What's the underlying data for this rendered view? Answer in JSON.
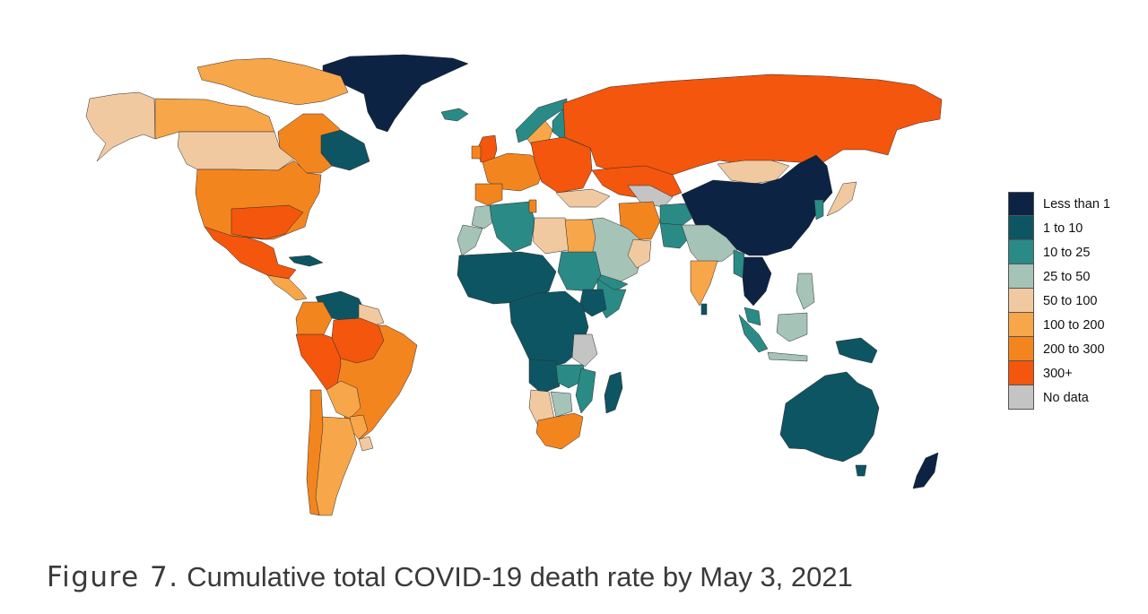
{
  "caption": {
    "figure_label": "Figure 7.",
    "text": "Cumulative total COVID-19 death rate by May 3, 2021"
  },
  "legend": {
    "items": [
      {
        "label": "Less than 1",
        "color": "#0c2344"
      },
      {
        "label": "1 to 10",
        "color": "#0e5563"
      },
      {
        "label": "10 to 25",
        "color": "#2a8a86"
      },
      {
        "label": "25 to 50",
        "color": "#a6c3b8"
      },
      {
        "label": "50 to 100",
        "color": "#f1c9a0"
      },
      {
        "label": "100 to 200",
        "color": "#f7a649"
      },
      {
        "label": "200 to 300",
        "color": "#f3851f"
      },
      {
        "label": "300+",
        "color": "#f3560c"
      },
      {
        "label": "No data",
        "color": "#c4c4c4"
      }
    ]
  },
  "regions": [
    {
      "id": "greenland",
      "name": "Greenland",
      "class": "Less than 1"
    },
    {
      "id": "alaska",
      "name": "Alaska",
      "class": "50 to 100"
    },
    {
      "id": "canada-west",
      "name": "Canada (west)",
      "class": "100 to 200"
    },
    {
      "id": "canada-arctic",
      "name": "Canadian Arctic",
      "class": "100 to 200"
    },
    {
      "id": "canada-prairies",
      "name": "Canada (prairies)",
      "class": "50 to 100"
    },
    {
      "id": "quebec",
      "name": "Quebec",
      "class": "200 to 300"
    },
    {
      "id": "atlantic-canada",
      "name": "Atlantic Canada",
      "class": "1 to 10"
    },
    {
      "id": "usa",
      "name": "United States",
      "class": "200 to 300"
    },
    {
      "id": "usa-south",
      "name": "United States (south)",
      "class": "300+"
    },
    {
      "id": "mexico",
      "name": "Mexico",
      "class": "300+"
    },
    {
      "id": "central-america",
      "name": "Central America",
      "class": "100 to 200"
    },
    {
      "id": "cuba",
      "name": "Cuba",
      "class": "1 to 10"
    },
    {
      "id": "venezuela",
      "name": "Venezuela",
      "class": "1 to 10"
    },
    {
      "id": "guianas",
      "name": "Guianas",
      "class": "50 to 100"
    },
    {
      "id": "colombia",
      "name": "Colombia",
      "class": "200 to 300"
    },
    {
      "id": "peru",
      "name": "Peru",
      "class": "300+"
    },
    {
      "id": "brazil",
      "name": "Brazil",
      "class": "200 to 300"
    },
    {
      "id": "brazil-north",
      "name": "Brazil (north)",
      "class": "300+"
    },
    {
      "id": "bolivia",
      "name": "Bolivia",
      "class": "100 to 200"
    },
    {
      "id": "paraguay",
      "name": "Paraguay",
      "class": "100 to 200"
    },
    {
      "id": "uruguay",
      "name": "Uruguay",
      "class": "50 to 100"
    },
    {
      "id": "argentina",
      "name": "Argentina",
      "class": "100 to 200"
    },
    {
      "id": "chile",
      "name": "Chile",
      "class": "200 to 300"
    },
    {
      "id": "iceland",
      "name": "Iceland",
      "class": "10 to 25"
    },
    {
      "id": "uk",
      "name": "United Kingdom",
      "class": "300+"
    },
    {
      "id": "ireland",
      "name": "Ireland",
      "class": "200 to 300"
    },
    {
      "id": "norway",
      "name": "Norway",
      "class": "10 to 25"
    },
    {
      "id": "sweden",
      "name": "Sweden",
      "class": "100 to 200"
    },
    {
      "id": "finland",
      "name": "Finland",
      "class": "10 to 25"
    },
    {
      "id": "western-europe",
      "name": "Western Europe",
      "class": "200 to 300"
    },
    {
      "id": "iberia",
      "name": "Iberia",
      "class": "200 to 300"
    },
    {
      "id": "eastern-europe",
      "name": "Eastern Europe",
      "class": "300+"
    },
    {
      "id": "russia",
      "name": "Russia",
      "class": "300+"
    },
    {
      "id": "kazakhstan",
      "name": "Kazakhstan",
      "class": "300+"
    },
    {
      "id": "mongolia",
      "name": "Mongolia",
      "class": "50 to 100"
    },
    {
      "id": "china",
      "name": "China",
      "class": "Less than 1"
    },
    {
      "id": "korea",
      "name": "Korea",
      "class": "10 to 25"
    },
    {
      "id": "japan",
      "name": "Japan",
      "class": "50 to 100"
    },
    {
      "id": "central-asia",
      "name": "Central Asia",
      "class": "No data"
    },
    {
      "id": "turkey",
      "name": "Turkey",
      "class": "50 to 100"
    },
    {
      "id": "iran",
      "name": "Iran",
      "class": "200 to 300"
    },
    {
      "id": "arabia",
      "name": "Arabian Peninsula",
      "class": "25 to 50"
    },
    {
      "id": "oman",
      "name": "Oman",
      "class": "50 to 100"
    },
    {
      "id": "yemen",
      "name": "Yemen",
      "class": "10 to 25"
    },
    {
      "id": "afghanistan",
      "name": "Afghanistan",
      "class": "10 to 25"
    },
    {
      "id": "pakistan",
      "name": "Pakistan",
      "class": "10 to 25"
    },
    {
      "id": "india-north",
      "name": "India (north)",
      "class": "25 to 50"
    },
    {
      "id": "india-south",
      "name": "India (south)",
      "class": "100 to 200"
    },
    {
      "id": "sri-lanka",
      "name": "Sri Lanka",
      "class": "1 to 10"
    },
    {
      "id": "indochina",
      "name": "Indochina",
      "class": "Less than 1"
    },
    {
      "id": "myanmar",
      "name": "Myanmar",
      "class": "10 to 25"
    },
    {
      "id": "malaysia",
      "name": "Malaysia",
      "class": "10 to 25"
    },
    {
      "id": "philippines",
      "name": "Philippines",
      "class": "25 to 50"
    },
    {
      "id": "sumatra",
      "name": "Sumatra",
      "class": "10 to 25"
    },
    {
      "id": "java",
      "name": "Java",
      "class": "25 to 50"
    },
    {
      "id": "borneo",
      "name": "Borneo",
      "class": "25 to 50"
    },
    {
      "id": "new-guinea",
      "name": "New Guinea",
      "class": "1 to 10"
    },
    {
      "id": "australia",
      "name": "Australia",
      "class": "1 to 10"
    },
    {
      "id": "tasmania",
      "name": "Tasmania",
      "class": "1 to 10"
    },
    {
      "id": "new-zealand",
      "name": "New Zealand",
      "class": "Less than 1"
    },
    {
      "id": "morocco",
      "name": "Morocco",
      "class": "25 to 50"
    },
    {
      "id": "algeria",
      "name": "Algeria",
      "class": "10 to 25"
    },
    {
      "id": "tunisia",
      "name": "Tunisia",
      "class": "200 to 300"
    },
    {
      "id": "libya",
      "name": "Libya",
      "class": "50 to 100"
    },
    {
      "id": "egypt",
      "name": "Egypt",
      "class": "100 to 200"
    },
    {
      "id": "west-sahara",
      "name": "Western Sahara",
      "class": "25 to 50"
    },
    {
      "id": "sahel",
      "name": "Sahel",
      "class": "1 to 10"
    },
    {
      "id": "sudan",
      "name": "Sudan",
      "class": "10 to 25"
    },
    {
      "id": "horn-of-africa",
      "name": "Horn of Africa",
      "class": "10 to 25"
    },
    {
      "id": "ethiopia",
      "name": "Ethiopia",
      "class": "1 to 10"
    },
    {
      "id": "central-africa",
      "name": "Central Africa",
      "class": "1 to 10"
    },
    {
      "id": "tanzania",
      "name": "Tanzania",
      "class": "No data"
    },
    {
      "id": "angola",
      "name": "Angola",
      "class": "1 to 10"
    },
    {
      "id": "zambia",
      "name": "Zambia",
      "class": "10 to 25"
    },
    {
      "id": "namibia",
      "name": "Namibia",
      "class": "50 to 100"
    },
    {
      "id": "botswana",
      "name": "Botswana",
      "class": "25 to 50"
    },
    {
      "id": "mozambique",
      "name": "Mozambique",
      "class": "10 to 25"
    },
    {
      "id": "south-africa",
      "name": "South Africa",
      "class": "200 to 300"
    },
    {
      "id": "madagascar",
      "name": "Madagascar",
      "class": "1 to 10"
    }
  ]
}
